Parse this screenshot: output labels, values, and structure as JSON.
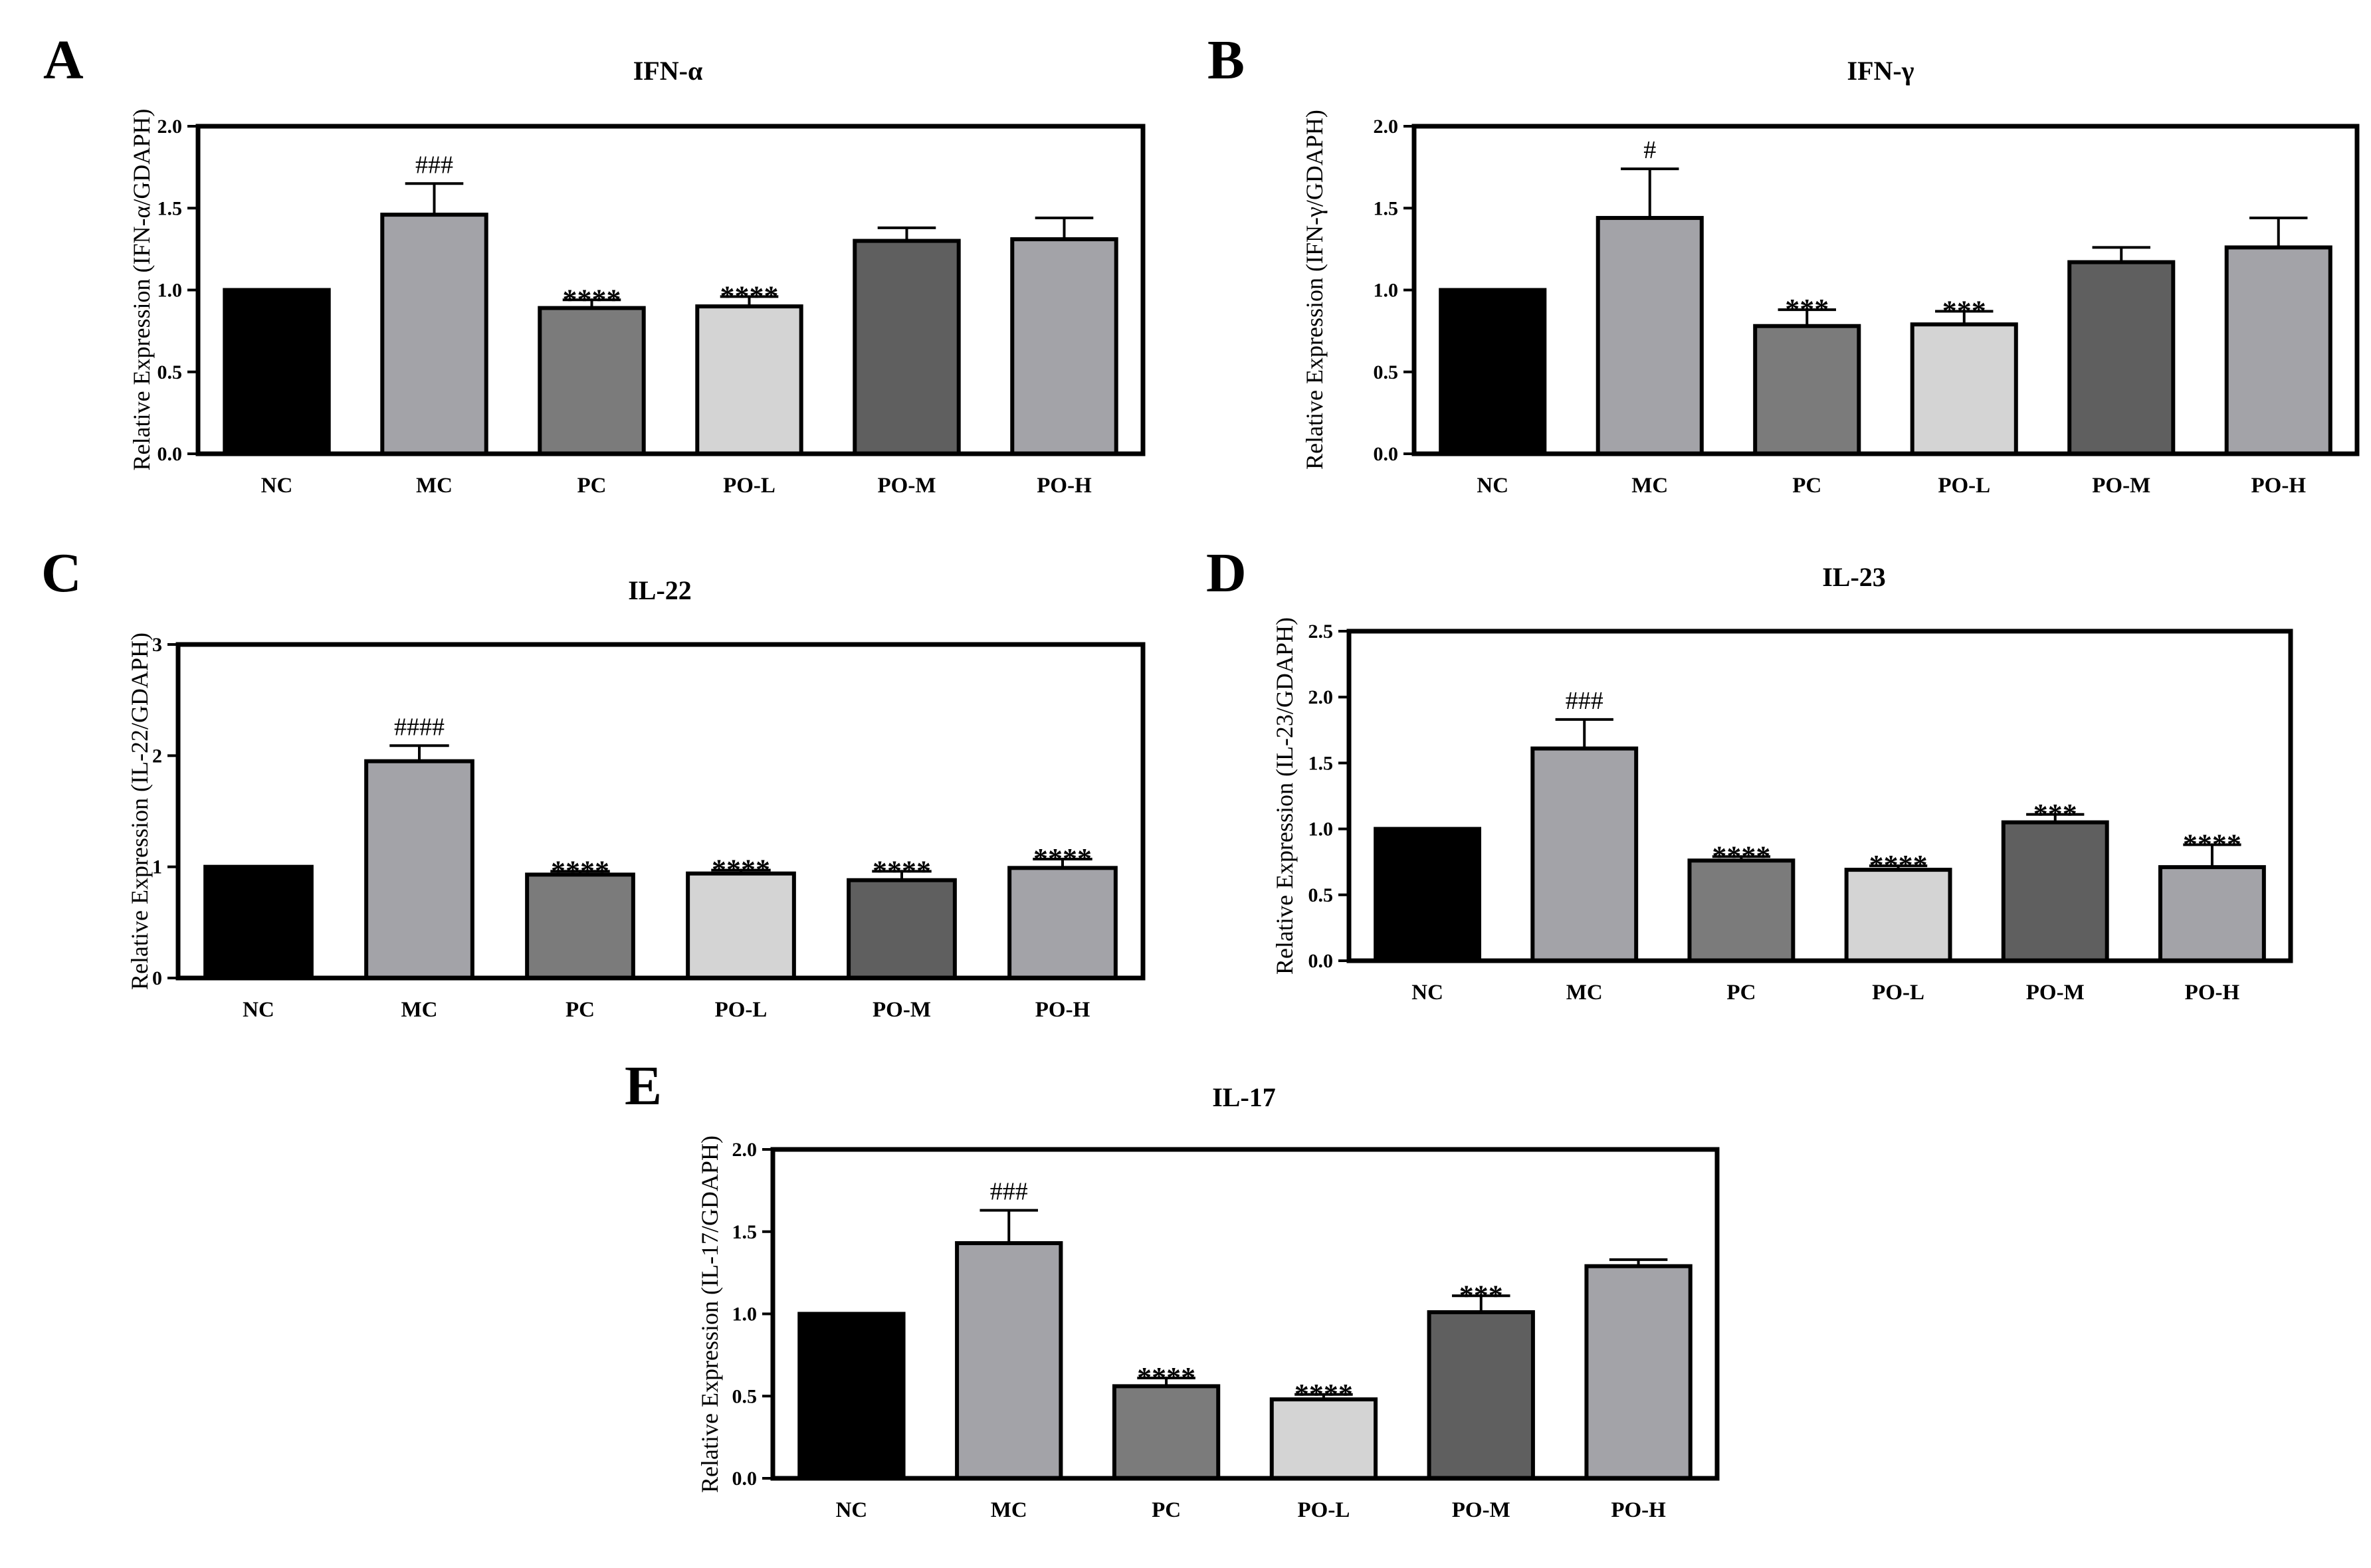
{
  "figure_title": "",
  "chart_data": [
    {
      "panel": "A",
      "type": "bar",
      "title": "IFN-α",
      "xlabel": "",
      "ylabel": "Relative Expression (IFN-α/GDAPH)",
      "ylim": [
        0,
        2.0
      ],
      "yticks": [
        "0.0",
        "0.5",
        "1.0",
        "1.5",
        "2.0"
      ],
      "categories": [
        "NC",
        "MC",
        "PC",
        "PO-L",
        "PO-M",
        "PO-H"
      ],
      "values": [
        1.0,
        1.46,
        0.89,
        0.9,
        1.3,
        1.31
      ],
      "errors": [
        0,
        0.19,
        0.05,
        0.06,
        0.08,
        0.13
      ],
      "colors": [
        "#000000",
        "#a3a3a8",
        "#7b7b7b",
        "#d4d4d4",
        "#5f5f5f",
        "#a3a3a8"
      ],
      "annotations": [
        "",
        "###",
        "****",
        "****",
        "",
        ""
      ]
    },
    {
      "panel": "B",
      "type": "bar",
      "title": "IFN-γ",
      "xlabel": "",
      "ylabel": "Relative Expression (IFN-γ/GDAPH)",
      "ylim": [
        0,
        2.0
      ],
      "yticks": [
        "0.0",
        "0.5",
        "1.0",
        "1.5",
        "2.0"
      ],
      "categories": [
        "NC",
        "MC",
        "PC",
        "PO-L",
        "PO-M",
        "PO-H"
      ],
      "values": [
        1.0,
        1.44,
        0.78,
        0.79,
        1.17,
        1.26
      ],
      "errors": [
        0,
        0.3,
        0.1,
        0.08,
        0.09,
        0.18
      ],
      "colors": [
        "#000000",
        "#a3a3a8",
        "#7b7b7b",
        "#d4d4d4",
        "#5f5f5f",
        "#a3a3a8"
      ],
      "annotations": [
        "",
        "#",
        "***",
        "***",
        "",
        ""
      ]
    },
    {
      "panel": "C",
      "type": "bar",
      "title": "IL-22",
      "xlabel": "",
      "ylabel": "Relative Expression (IL-22/GDAPH)",
      "ylim": [
        0,
        3
      ],
      "yticks": [
        "0",
        "1",
        "2",
        "3"
      ],
      "categories": [
        "NC",
        "MC",
        "PC",
        "PO-L",
        "PO-M",
        "PO-H"
      ],
      "values": [
        1.0,
        1.95,
        0.93,
        0.94,
        0.88,
        0.99
      ],
      "errors": [
        0,
        0.14,
        0.03,
        0.03,
        0.08,
        0.08
      ],
      "colors": [
        "#000000",
        "#a3a3a8",
        "#7b7b7b",
        "#d4d4d4",
        "#5f5f5f",
        "#a3a3a8"
      ],
      "annotations": [
        "",
        "####",
        "****",
        "****",
        "****",
        "****"
      ]
    },
    {
      "panel": "D",
      "type": "bar",
      "title": "IL-23",
      "xlabel": "",
      "ylabel": "Relative Expression (IL-23/GDAPH)",
      "ylim": [
        0,
        2.5
      ],
      "yticks": [
        "0.0",
        "0.5",
        "1.0",
        "1.5",
        "2.0",
        "2.5"
      ],
      "categories": [
        "NC",
        "MC",
        "PC",
        "PO-L",
        "PO-M",
        "PO-H"
      ],
      "values": [
        1.0,
        1.61,
        0.76,
        0.69,
        1.05,
        0.71
      ],
      "errors": [
        0,
        0.22,
        0.03,
        0.03,
        0.06,
        0.17
      ],
      "colors": [
        "#000000",
        "#a3a3a8",
        "#7b7b7b",
        "#d4d4d4",
        "#5f5f5f",
        "#a3a3a8"
      ],
      "annotations": [
        "",
        "###",
        "****",
        "****",
        "***",
        "****"
      ]
    },
    {
      "panel": "E",
      "type": "bar",
      "title": "IL-17",
      "xlabel": "",
      "ylabel": "Relative Expression (IL-17/GDAPH)",
      "ylim": [
        0,
        2.0
      ],
      "yticks": [
        "0.0",
        "0.5",
        "1.0",
        "1.5",
        "2.0"
      ],
      "categories": [
        "NC",
        "MC",
        "PC",
        "PO-L",
        "PO-M",
        "PO-H"
      ],
      "values": [
        1.0,
        1.43,
        0.56,
        0.48,
        1.01,
        1.29
      ],
      "errors": [
        0,
        0.2,
        0.05,
        0.03,
        0.1,
        0.04
      ],
      "colors": [
        "#000000",
        "#a3a3a8",
        "#7b7b7b",
        "#d4d4d4",
        "#5f5f5f",
        "#a3a3a8"
      ],
      "annotations": [
        "",
        "###",
        "****",
        "****",
        "***",
        ""
      ]
    }
  ]
}
